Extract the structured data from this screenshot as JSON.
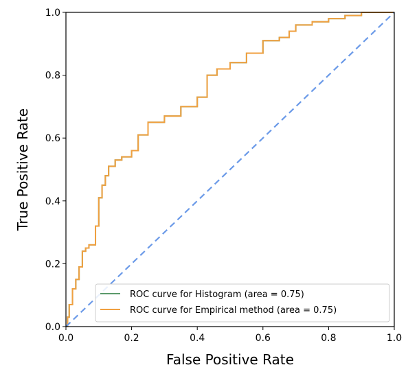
{
  "chart_data": {
    "type": "line",
    "title": "",
    "xlabel": "False Positive Rate",
    "ylabel": "True Positive Rate",
    "xlim": [
      0.0,
      1.0
    ],
    "ylim": [
      0.0,
      1.0
    ],
    "xticks": [
      "0.0",
      "0.2",
      "0.4",
      "0.6",
      "0.8",
      "1.0"
    ],
    "yticks": [
      "0.0",
      "0.2",
      "0.4",
      "0.6",
      "0.8",
      "1.0"
    ],
    "grid": false,
    "legend_position": "lower-right",
    "series": [
      {
        "name": "ROC curve for Histogram (area = 0.75)",
        "color": "#5b9a6a",
        "style": "solid",
        "x": [
          0.0,
          0.005,
          0.01,
          0.02,
          0.03,
          0.04,
          0.05,
          0.06,
          0.07,
          0.09,
          0.1,
          0.11,
          0.12,
          0.13,
          0.15,
          0.17,
          0.2,
          0.22,
          0.25,
          0.3,
          0.35,
          0.4,
          0.43,
          0.46,
          0.5,
          0.55,
          0.6,
          0.65,
          0.68,
          0.7,
          0.75,
          0.8,
          0.85,
          0.9,
          0.95,
          1.0
        ],
        "y": [
          0.0,
          0.03,
          0.07,
          0.12,
          0.15,
          0.19,
          0.24,
          0.25,
          0.26,
          0.32,
          0.41,
          0.45,
          0.48,
          0.51,
          0.53,
          0.54,
          0.56,
          0.61,
          0.65,
          0.67,
          0.7,
          0.73,
          0.8,
          0.82,
          0.84,
          0.87,
          0.91,
          0.92,
          0.94,
          0.96,
          0.97,
          0.98,
          0.99,
          1.0,
          1.0,
          1.0
        ]
      },
      {
        "name": "ROC curve for Empirical method (area = 0.75)",
        "color": "#f0a040",
        "style": "solid",
        "x": [
          0.0,
          0.005,
          0.01,
          0.02,
          0.03,
          0.04,
          0.05,
          0.06,
          0.07,
          0.09,
          0.1,
          0.11,
          0.12,
          0.13,
          0.15,
          0.17,
          0.2,
          0.22,
          0.25,
          0.3,
          0.35,
          0.4,
          0.43,
          0.46,
          0.5,
          0.55,
          0.6,
          0.65,
          0.68,
          0.7,
          0.75,
          0.8,
          0.85,
          0.9,
          0.95,
          1.0
        ],
        "y": [
          0.0,
          0.03,
          0.07,
          0.12,
          0.15,
          0.19,
          0.24,
          0.25,
          0.26,
          0.32,
          0.41,
          0.45,
          0.48,
          0.51,
          0.53,
          0.54,
          0.56,
          0.61,
          0.65,
          0.67,
          0.7,
          0.73,
          0.8,
          0.82,
          0.84,
          0.87,
          0.91,
          0.92,
          0.94,
          0.96,
          0.97,
          0.98,
          0.99,
          1.0,
          1.0,
          1.0
        ]
      },
      {
        "color": "#6b9ae8",
        "style": "dashed",
        "x": [
          0.0,
          1.0
        ],
        "y": [
          0.0,
          1.0
        ]
      }
    ]
  }
}
